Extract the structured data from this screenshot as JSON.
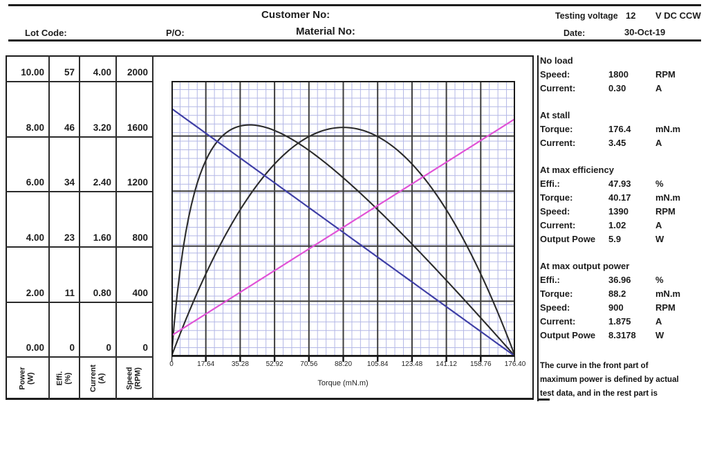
{
  "header": {
    "customer_no_label": "Customer No:",
    "testing_voltage_label": "Testing voltage",
    "testing_voltage_value": "12",
    "testing_voltage_unit": "V DC CCW",
    "lot_code_label": "Lot Code:",
    "po_label": "P/O:",
    "material_no_label": "Material No:",
    "date_label": "Date:",
    "date_value": "30-Oct-19"
  },
  "scale_table": {
    "columns": [
      {
        "label": "Power",
        "unit": "(W)",
        "values": [
          "10.00",
          "8.00",
          "6.00",
          "4.00",
          "2.00",
          "0.00"
        ]
      },
      {
        "label": "Effi.",
        "unit": "(%)",
        "values": [
          "57",
          "46",
          "34",
          "23",
          "11",
          "0"
        ]
      },
      {
        "label": "Current",
        "unit": "(A)",
        "values": [
          "4.00",
          "3.20",
          "2.40",
          "1.60",
          "0.80",
          "0"
        ]
      },
      {
        "label": "Speed",
        "unit": "(RPM)",
        "values": [
          "2000",
          "1600",
          "1200",
          "800",
          "400",
          "0"
        ]
      }
    ]
  },
  "chart_data": {
    "type": "line",
    "xlabel": "Torque (mN.m)",
    "x_ticks": [
      "0",
      "17.64",
      "35.28",
      "52.92",
      "70.56",
      "88.20",
      "105.84",
      "123.48",
      "141.12",
      "158.76",
      "176.40"
    ],
    "x_max": 176.4,
    "grid": "fine blue minor grid with dark major grid, 10 major columns x 5 major rows",
    "motor_params": {
      "voltage_v": 12,
      "no_load_speed_rpm": 1800,
      "no_load_current_a": 0.3,
      "stall_torque_mnm": 176.4,
      "stall_current_a": 3.45
    },
    "axes": [
      {
        "name": "Power",
        "unit": "W",
        "max": 10
      },
      {
        "name": "Effi.",
        "unit": "%",
        "max": 57
      },
      {
        "name": "Current",
        "unit": "A",
        "max": 4
      },
      {
        "name": "Speed",
        "unit": "RPM",
        "max": 2000
      }
    ],
    "x": [
      0,
      17.64,
      35.28,
      52.92,
      70.56,
      88.2,
      105.84,
      123.48,
      141.12,
      158.76,
      176.4
    ],
    "series": [
      {
        "name": "Speed",
        "unit": "RPM",
        "color": "#3f3fa6",
        "axis_max": 2000,
        "values": [
          1800,
          1620,
          1440,
          1260,
          1080,
          900,
          720,
          540,
          360,
          180,
          0
        ]
      },
      {
        "name": "Current",
        "unit": "A",
        "color": "#e152d6",
        "axis_max": 4,
        "values": [
          0.3,
          0.615,
          0.93,
          1.245,
          1.56,
          1.875,
          2.19,
          2.505,
          2.82,
          3.135,
          3.45
        ]
      },
      {
        "name": "Power",
        "unit": "W",
        "color": "#2b2b2b",
        "axis_max": 10,
        "values": [
          0,
          2.99,
          5.32,
          6.98,
          7.98,
          8.31,
          7.98,
          6.98,
          5.32,
          2.99,
          0
        ]
      },
      {
        "name": "Efficiency",
        "unit": "%",
        "color": "#2b2b2b",
        "axis_max": 57,
        "values": [
          0,
          40.56,
          47.67,
          46.76,
          42.63,
          36.95,
          30.36,
          23.22,
          15.72,
          7.95,
          0
        ]
      }
    ],
    "colors": {
      "grid_minor": "#b3b7e6",
      "grid_major": "#3d3d3d",
      "border": "#1a1a1a"
    }
  },
  "results": {
    "sections": [
      {
        "title": "No load",
        "rows": [
          {
            "label": "Speed:",
            "value": "1800",
            "unit": "RPM"
          },
          {
            "label": "Current:",
            "value": "0.30",
            "unit": "A"
          }
        ]
      },
      {
        "title": "At stall",
        "rows": [
          {
            "label": "Torque:",
            "value": "176.4",
            "unit": "mN.m"
          },
          {
            "label": "Current:",
            "value": "3.45",
            "unit": "A"
          }
        ]
      },
      {
        "title": "At max efficiency",
        "rows": [
          {
            "label": "Effi.:",
            "value": "47.93",
            "unit": "%"
          },
          {
            "label": "Torque:",
            "value": "40.17",
            "unit": "mN.m"
          },
          {
            "label": "Speed:",
            "value": "1390",
            "unit": "RPM"
          },
          {
            "label": "Current:",
            "value": "1.02",
            "unit": "A"
          },
          {
            "label": "Output Powe",
            "value": "5.9",
            "unit": "W"
          }
        ]
      },
      {
        "title": "At max output power",
        "rows": [
          {
            "label": "Effi.:",
            "value": "36.96",
            "unit": "%"
          },
          {
            "label": "Torque:",
            "value": "88.2",
            "unit": "mN.m"
          },
          {
            "label": "Speed:",
            "value": "900",
            "unit": "RPM"
          },
          {
            "label": "Current:",
            "value": "1.875",
            "unit": "A"
          },
          {
            "label": "Output Powe",
            "value": "8.3178",
            "unit": "W"
          }
        ]
      }
    ]
  },
  "note_lines": [
    "The curve in the front part of",
    "maximum power is defined by actual",
    "test data, and in the rest part is"
  ]
}
